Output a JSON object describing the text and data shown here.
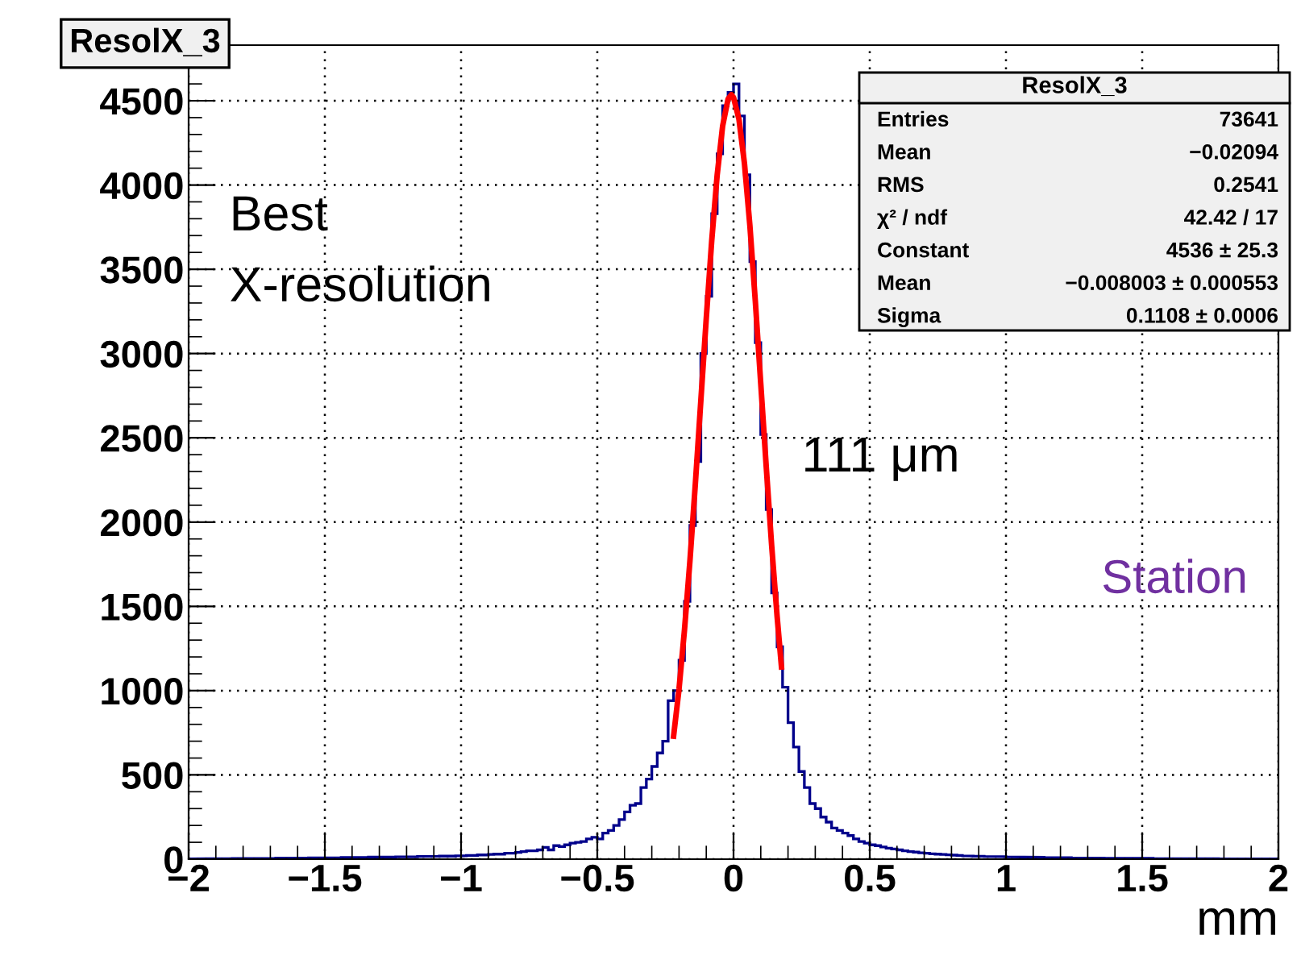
{
  "chart_data": {
    "type": "histogram",
    "title": "ResolX_3",
    "xlabel": "mm",
    "bins": [
      -2.0,
      -1.98,
      -1.96,
      -1.94,
      -1.92,
      -1.9,
      -1.88,
      -1.86,
      -1.84,
      -1.82,
      -1.8,
      -1.78,
      -1.76,
      -1.74,
      -1.72,
      -1.7,
      -1.68,
      -1.66,
      -1.64,
      -1.62,
      -1.6,
      -1.58,
      -1.56,
      -1.54,
      -1.52,
      -1.5,
      -1.48,
      -1.46,
      -1.44,
      -1.42,
      -1.4,
      -1.38,
      -1.36,
      -1.34,
      -1.32,
      -1.3,
      -1.28,
      -1.26,
      -1.24,
      -1.22,
      -1.2,
      -1.18,
      -1.16,
      -1.14,
      -1.12,
      -1.1,
      -1.08,
      -1.06,
      -1.04,
      -1.02,
      -1.0,
      -0.98,
      -0.96,
      -0.94,
      -0.92,
      -0.9,
      -0.88,
      -0.86,
      -0.84,
      -0.82,
      -0.8,
      -0.78,
      -0.76,
      -0.74,
      -0.72,
      -0.7,
      -0.68,
      -0.66,
      -0.64,
      -0.62,
      -0.6,
      -0.58,
      -0.56,
      -0.54,
      -0.52,
      -0.5,
      -0.48,
      -0.46,
      -0.44,
      -0.42,
      -0.4,
      -0.38,
      -0.36,
      -0.34,
      -0.32,
      -0.3,
      -0.28,
      -0.26,
      -0.24,
      -0.22,
      -0.2,
      -0.18,
      -0.16,
      -0.14,
      -0.12,
      -0.1,
      -0.08,
      -0.06,
      -0.04,
      -0.02,
      0.0,
      0.02,
      0.04,
      0.06,
      0.08,
      0.1,
      0.12,
      0.14,
      0.16,
      0.18,
      0.2,
      0.22,
      0.24,
      0.26,
      0.28,
      0.3,
      0.32,
      0.34,
      0.36,
      0.38,
      0.4,
      0.42,
      0.44,
      0.46,
      0.48,
      0.5,
      0.52,
      0.54,
      0.56,
      0.58,
      0.6,
      0.62,
      0.64,
      0.66,
      0.68,
      0.7,
      0.72,
      0.74,
      0.76,
      0.78,
      0.8,
      0.82,
      0.84,
      0.86,
      0.88,
      0.9,
      0.92,
      0.94,
      0.96,
      0.98,
      1.0,
      1.02,
      1.04,
      1.06,
      1.08,
      1.1,
      1.12,
      1.14,
      1.16,
      1.18,
      1.2,
      1.22,
      1.24,
      1.26,
      1.28,
      1.3,
      1.32,
      1.34,
      1.36,
      1.38,
      1.4,
      1.42,
      1.44,
      1.46,
      1.48,
      1.5,
      1.52,
      1.54,
      1.56,
      1.58,
      1.6,
      1.62,
      1.64,
      1.66,
      1.68,
      1.7,
      1.72,
      1.74,
      1.76,
      1.78,
      1.8,
      1.82,
      1.84,
      1.86,
      1.88,
      1.9,
      1.92,
      1.94,
      1.96,
      1.98,
      2.0
    ],
    "series": [
      {
        "color": "#00008b",
        "values": [
          2,
          2,
          2,
          3,
          2,
          3,
          3,
          3,
          4,
          3,
          4,
          4,
          5,
          4,
          5,
          5,
          6,
          5,
          6,
          7,
          6,
          7,
          8,
          7,
          8,
          8,
          9,
          9,
          10,
          9,
          10,
          11,
          11,
          12,
          11,
          13,
          12,
          13,
          14,
          14,
          15,
          14,
          16,
          15,
          17,
          17,
          18,
          19,
          18,
          20,
          20,
          22,
          22,
          25,
          25,
          28,
          30,
          30,
          35,
          35,
          40,
          45,
          50,
          50,
          55,
          70,
          55,
          80,
          75,
          85,
          95,
          100,
          105,
          120,
          130,
          120,
          155,
          170,
          200,
          235,
          280,
          320,
          330,
          425,
          475,
          550,
          630,
          700,
          940,
          1000,
          1180,
          1530,
          1980,
          2360,
          3000,
          3340,
          3830,
          4185,
          4470,
          4550,
          4600,
          4410,
          4060,
          3545,
          3065,
          2520,
          2075,
          1580,
          1260,
          1020,
          810,
          665,
          520,
          425,
          330,
          300,
          250,
          220,
          185,
          170,
          155,
          140,
          120,
          105,
          95,
          85,
          80,
          72,
          65,
          60,
          55,
          50,
          45,
          42,
          38,
          35,
          32,
          30,
          28,
          26,
          24,
          22,
          20,
          19,
          18,
          17,
          16,
          16,
          15,
          15,
          14,
          13,
          13,
          12,
          12,
          11,
          11,
          10,
          10,
          9,
          9,
          9,
          8,
          8,
          8,
          7,
          7,
          7,
          6,
          6,
          6,
          6,
          5,
          5,
          5,
          5,
          5,
          4,
          4,
          4,
          4,
          4,
          3,
          3,
          3,
          3,
          3,
          3,
          3,
          2,
          2,
          2,
          2,
          2,
          2,
          2,
          2,
          2,
          2,
          2
        ]
      },
      {
        "type": "line",
        "color": "#ff0000",
        "x": [
          -0.22,
          -0.2,
          -0.18,
          -0.16,
          -0.14,
          -0.12,
          -0.1,
          -0.08,
          -0.06,
          -0.04,
          -0.02,
          -0.008,
          0.0,
          0.02,
          0.04,
          0.06,
          0.08,
          0.1,
          0.12,
          0.14,
          0.16,
          0.176
        ],
        "values": [
          730,
          1010,
          1360,
          1770,
          2230,
          2720,
          3210,
          3670,
          4060,
          4350,
          4510,
          4536,
          4520,
          4390,
          4130,
          3760,
          3310,
          2820,
          2330,
          1860,
          1440,
          1140
        ]
      }
    ],
    "xlim": [
      -2,
      2
    ],
    "ylim": [
      0,
      4830
    ],
    "xticks": [
      {
        "value": -2,
        "label": "−2"
      },
      {
        "value": -1.5,
        "label": "−1.5"
      },
      {
        "value": -1,
        "label": "−1"
      },
      {
        "value": -0.5,
        "label": "−0.5"
      },
      0,
      0.5,
      1,
      1.5,
      2
    ],
    "yticks": [
      0,
      500,
      1000,
      1500,
      2000,
      2500,
      3000,
      3500,
      4000,
      4500
    ],
    "grid": true,
    "legend": false,
    "annotations": [
      "Best\nX-resolution",
      "111 μm",
      "Station",
      "ResolX_3",
      "Entries",
      "73641",
      "Mean",
      "−0.02094",
      "RMS",
      "0.2541",
      "χ² / ndf",
      "42.42 / 17",
      "Constant",
      "4536 ± 25.3",
      "Mean",
      "−0.008003 ± 0.000553",
      "Sigma",
      "0.1108 ± 0.0006"
    ]
  }
}
